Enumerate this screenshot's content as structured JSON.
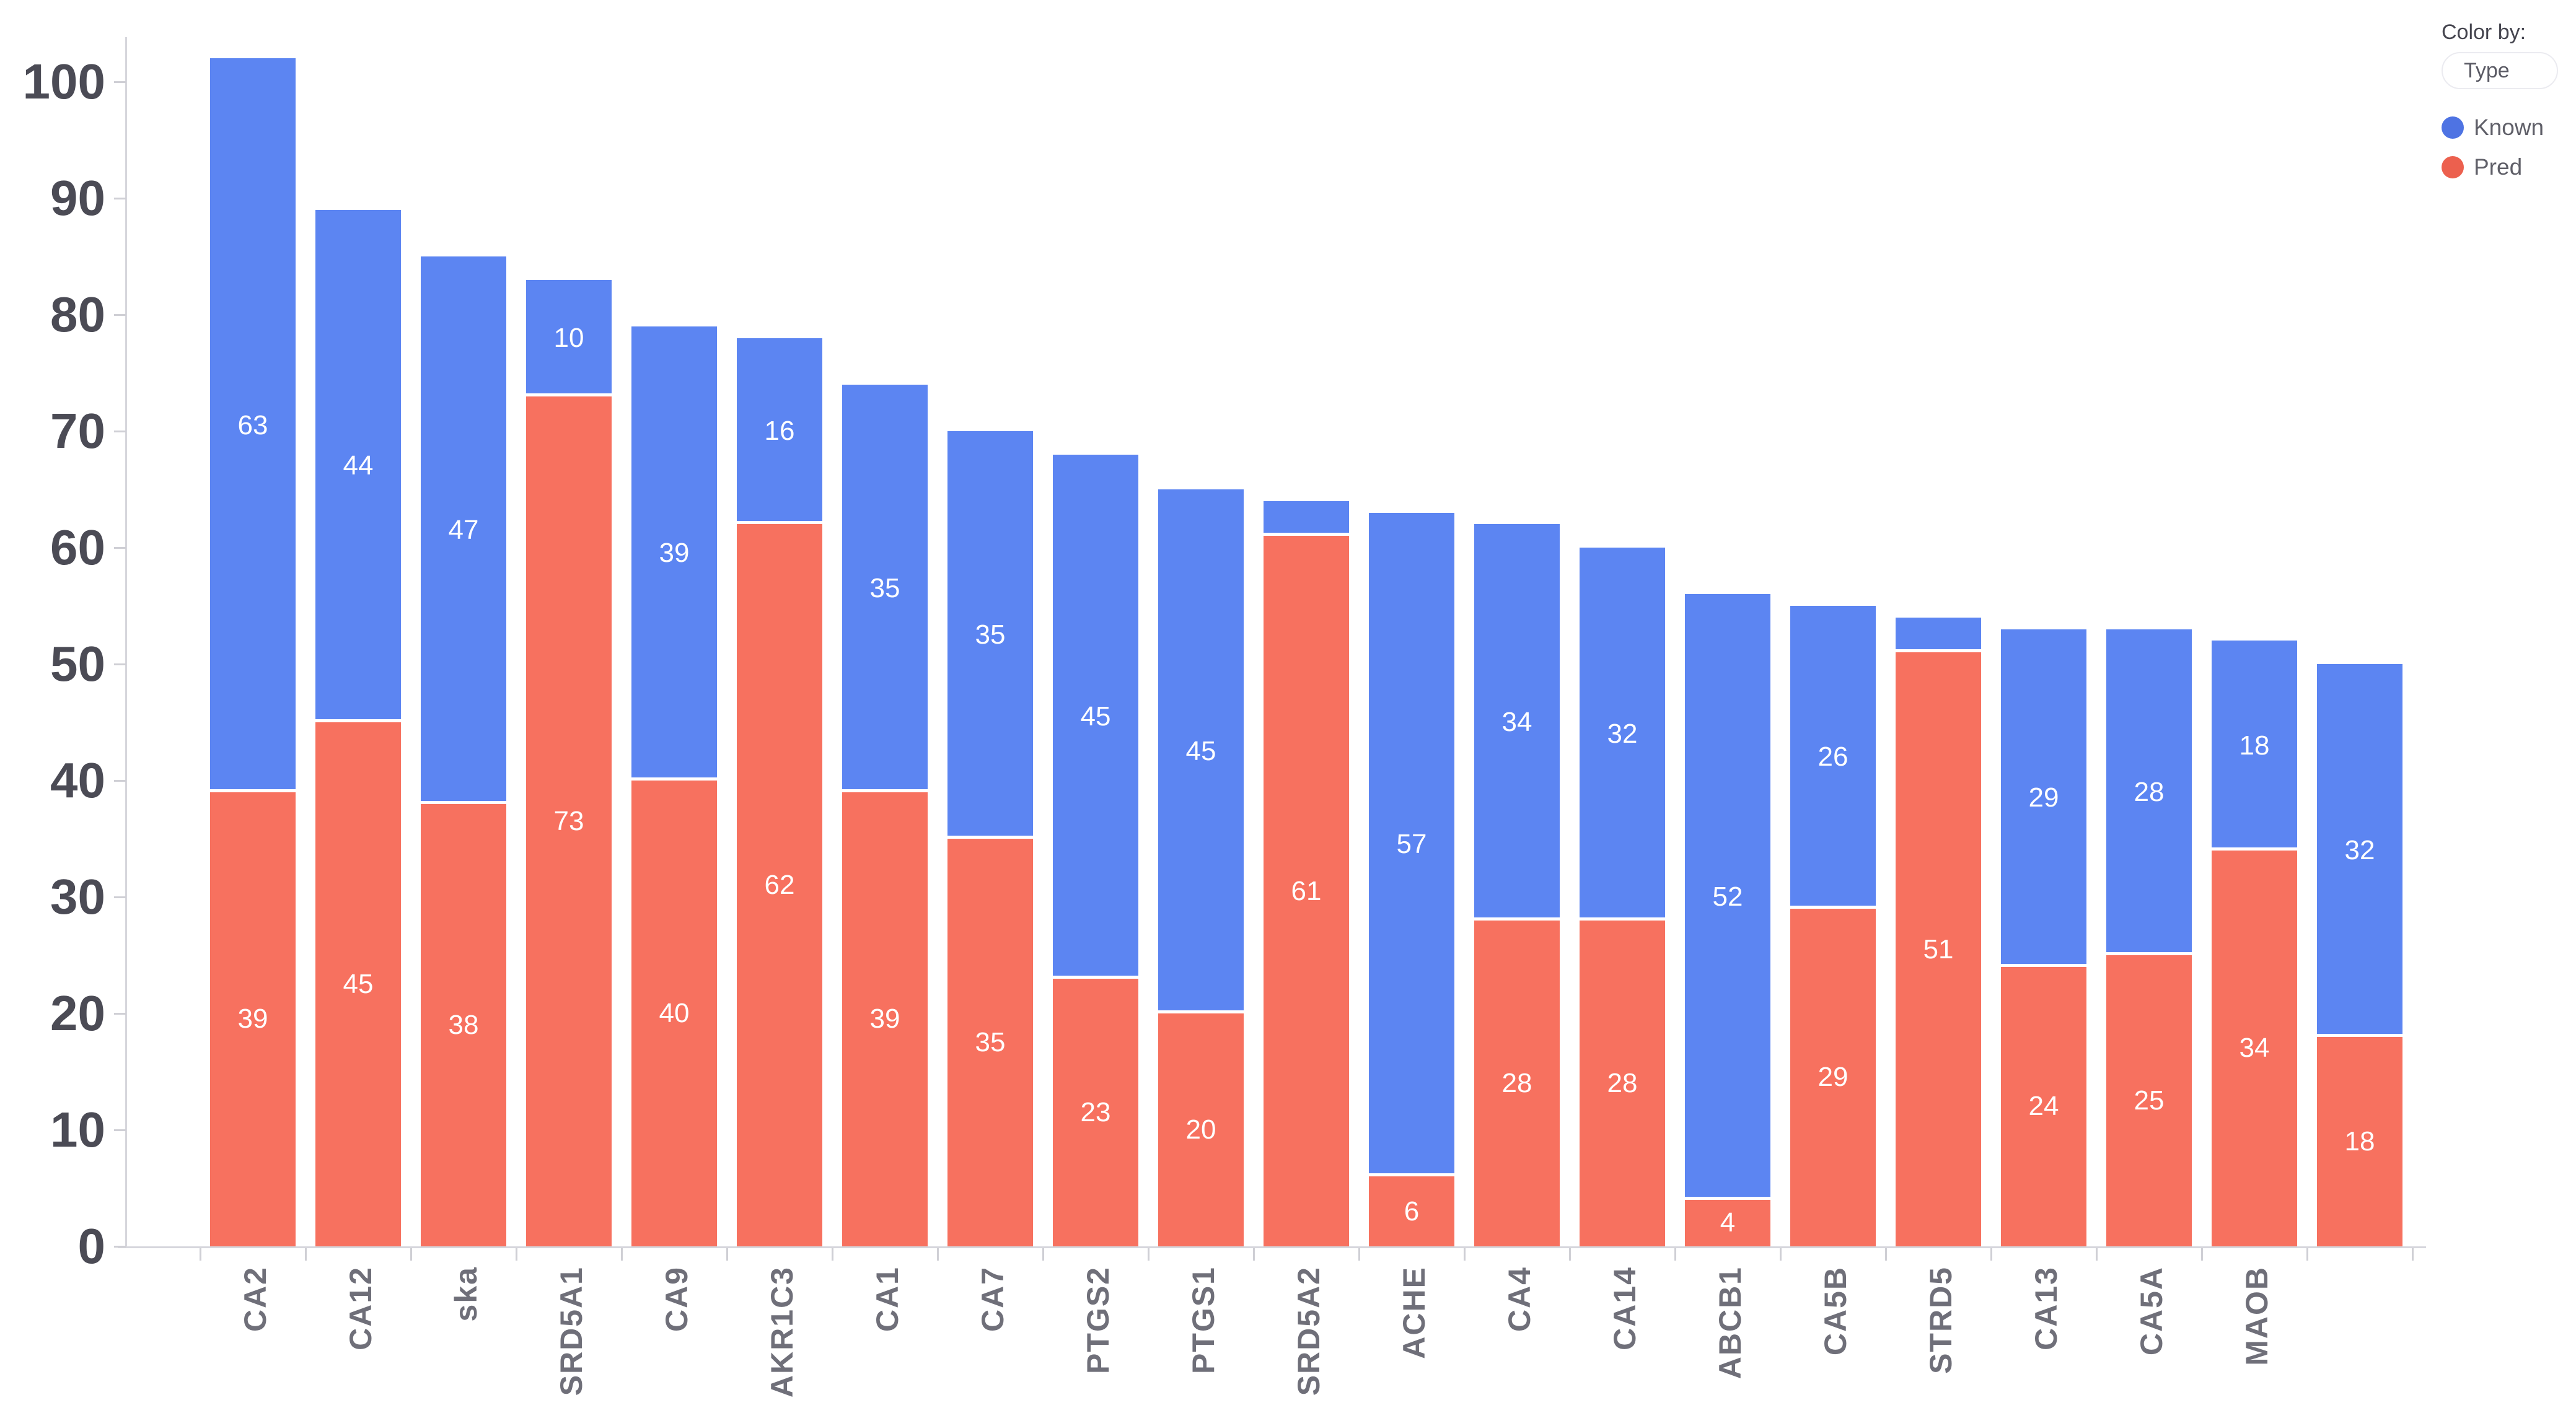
{
  "legend": {
    "color_by_label": "Color by:",
    "type_value": "Type",
    "entries": [
      {
        "label": "Known",
        "dot_color": "#4e73e3"
      },
      {
        "label": "Pred",
        "dot_color": "#ec604e"
      }
    ]
  },
  "colors": {
    "known_bar": "#5c85f2",
    "pred_bar": "#f7715f",
    "axis_line": "#d6d6dc",
    "tick": "#cfcfd5",
    "y_label": "#4b4b55",
    "x_label": "#6f6f79",
    "value_label": "#ffffff"
  },
  "chart_data": {
    "type": "bar",
    "stacked": true,
    "title": "",
    "xlabel": "",
    "ylabel": "",
    "grid": false,
    "legend_position": "top-right",
    "ylim": [
      0,
      104
    ],
    "y_ticks": [
      0,
      10,
      20,
      30,
      40,
      50,
      60,
      70,
      80,
      90,
      100
    ],
    "categories": [
      "CA2",
      "CA12",
      "ska",
      "SRD5A1",
      "CA9",
      "AKR1C3",
      "CA1",
      "CA7",
      "PTGS2",
      "PTGS1",
      "SRD5A2",
      "ACHE",
      "CA4",
      "CA14",
      "ABCB1",
      "CA5B",
      "STRD5",
      "CA13",
      "CA5A",
      "MAOB",
      ""
    ],
    "series": [
      {
        "name": "Pred",
        "color": "#f7715f",
        "values": [
          39,
          45,
          38,
          73,
          40,
          62,
          39,
          35,
          23,
          20,
          61,
          6,
          28,
          28,
          4,
          29,
          51,
          24,
          25,
          34,
          18
        ]
      },
      {
        "name": "Known",
        "color": "#5c85f2",
        "values": [
          63,
          44,
          47,
          10,
          39,
          16,
          35,
          35,
          45,
          45,
          3,
          57,
          34,
          32,
          52,
          26,
          3,
          29,
          28,
          18,
          32
        ]
      }
    ],
    "min_label_value": 4
  }
}
